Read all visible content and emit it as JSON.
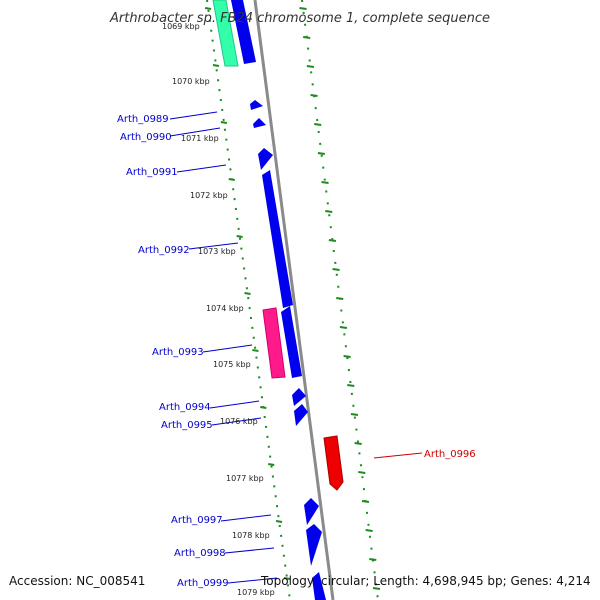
{
  "title": "Arthrobacter sp. FB24 chromosome 1, complete sequence",
  "footer": {
    "accession": "Accession: NC_008541",
    "summary": "Topology: circular; Length: 4,698,945 bp; Genes: 4,214"
  },
  "colors": {
    "forward_gene": "#0000ee",
    "reverse_gene": "#ee0000",
    "pink_feature": "#ff1a8c",
    "green_feature": "#33ffaa",
    "gc_dots": "#1f8a1f",
    "backbone": "#888888",
    "label_forward": "#0000cc",
    "label_reverse": "#cc0000"
  },
  "ticks": [
    {
      "label": "1069 kbp"
    },
    {
      "label": "1070 kbp"
    },
    {
      "label": "1071 kbp"
    },
    {
      "label": "1072 kbp"
    },
    {
      "label": "1073 kbp"
    },
    {
      "label": "1074 kbp"
    },
    {
      "label": "1075 kbp"
    },
    {
      "label": "1076 kbp"
    },
    {
      "label": "1077 kbp"
    },
    {
      "label": "1078 kbp"
    },
    {
      "label": "1079 kbp"
    }
  ],
  "genes": [
    {
      "name": "Arth_0989",
      "strand": "forward"
    },
    {
      "name": "Arth_0990",
      "strand": "forward"
    },
    {
      "name": "Arth_0991",
      "strand": "forward"
    },
    {
      "name": "Arth_0992",
      "strand": "forward"
    },
    {
      "name": "Arth_0993",
      "strand": "forward"
    },
    {
      "name": "Arth_0994",
      "strand": "forward"
    },
    {
      "name": "Arth_0995",
      "strand": "forward"
    },
    {
      "name": "Arth_0996",
      "strand": "reverse"
    },
    {
      "name": "Arth_0997",
      "strand": "forward"
    },
    {
      "name": "Arth_0998",
      "strand": "forward"
    },
    {
      "name": "Arth_0999",
      "strand": "forward"
    }
  ]
}
